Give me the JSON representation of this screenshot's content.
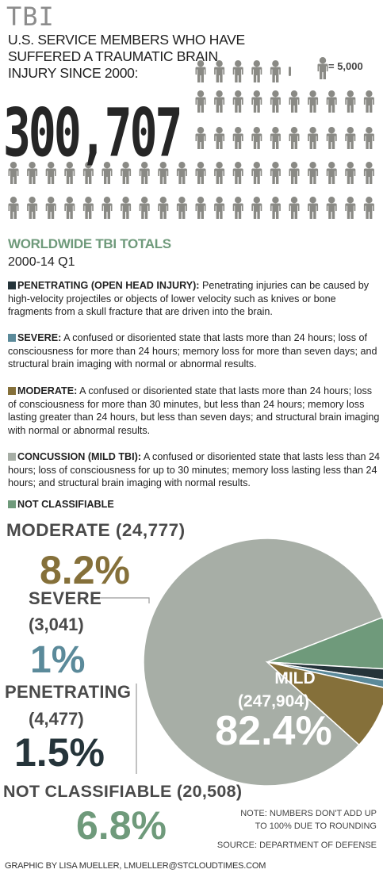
{
  "header": {
    "title": "TBI",
    "subtitle": "U.S. SERVICE MEMBERS WHO HAVE SUFFERED A TRAUMATIC BRAIN INJURY SINCE 2000:",
    "total": "300,707",
    "icon_legend": "= 5,000",
    "icon_name": "person-icon",
    "icon_color": "#8a8a85"
  },
  "worldwide": {
    "title": "WORLDWIDE TBI TOTALS",
    "period": "2000-14 Q1"
  },
  "definitions": [
    {
      "term": "PENETRATING (OPEN HEAD INJURY):",
      "text": " Penetrating injuries can be caused by high-velocity projectiles or objects of lower velocity such as knives or bone fragments from a skull fracture that are driven into the brain.",
      "color": "#25343a"
    },
    {
      "term": "SEVERE:",
      "text": " A confused or disoriented state that lasts more than 24 hours; loss of consciousness for more than 24 hours; memory loss for more than seven days; and structural brain imaging with normal or abnormal results.",
      "color": "#5b8a9a"
    },
    {
      "term": "MODERATE:",
      "text": " A confused or disoriented state that lasts more than 24 hours; loss of consciousness for more than 30 minutes, but less than 24 hours; memory loss lasting greater than 24 hours, but less than seven days; and structural brain imaging with normal or abnormal results.",
      "color": "#85703a"
    },
    {
      "term": "CONCUSSION (MILD TBI):",
      "text": " A confused or disoriented state that lasts less than 24 hours; loss of consciousness for up to 30 minutes; memory loss lasting less than 24 hours; and structural brain imaging with normal results.",
      "color": "#a7aea6"
    },
    {
      "term": "NOT CLASSIFIABLE",
      "text": "",
      "color": "#6f9a7b"
    }
  ],
  "chart_data": {
    "type": "pie",
    "slices": [
      {
        "label": "MILD",
        "count": "(247,904)",
        "value": 247904,
        "pct": "82.4%",
        "color": "#a7aea6"
      },
      {
        "label": "NOT CLASSIFIABLE",
        "count": "(20,508)",
        "value": 20508,
        "pct": "6.8%",
        "color": "#6f9a7b"
      },
      {
        "label": "PENETRATING",
        "count": "(4,477)",
        "value": 4477,
        "pct": "1.5%",
        "color": "#25343a"
      },
      {
        "label": "SEVERE",
        "count": "(3,041)",
        "value": 3041,
        "pct": "1%",
        "color": "#5b8a9a"
      },
      {
        "label": "MODERATE",
        "count": "(24,777)",
        "value": 24777,
        "pct": "8.2%",
        "color": "#85703a"
      }
    ]
  },
  "labels": {
    "moderate_name": "MODERATE (24,777)",
    "severe_name": "SEVERE",
    "severe_count": "(3,041)",
    "penetrating_name": "PENETRATING",
    "penetrating_count": "(4,477)",
    "notclass_name": "NOT CLASSIFIABLE (20,508)"
  },
  "footer": {
    "note_line1": "NOTE: NUMBERS DON'T ADD UP",
    "note_line2": "TO 100% DUE TO ROUNDING",
    "source": "SOURCE: DEPARTMENT OF DEFENSE",
    "credit": "GRAPHIC BY LISA MUELLER, LMUELLER@STCLOUDTIMES.COM"
  }
}
